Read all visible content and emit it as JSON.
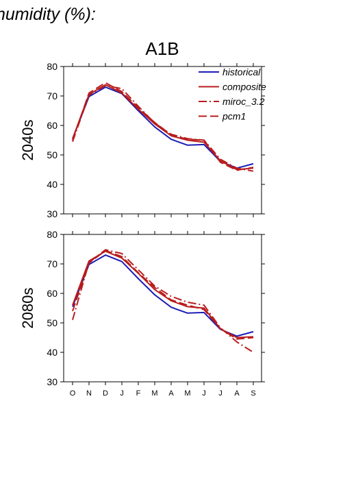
{
  "heading": "humidity (%):",
  "title": "A1B",
  "legend": [
    {
      "label": "historical",
      "color": "#1c1cb4",
      "dash": "solid"
    },
    {
      "label": "composite",
      "color": "#b81c1c",
      "dash": "solid"
    },
    {
      "label": "miroc_3.2",
      "color": "#b81c1c",
      "dash": "dashdot"
    },
    {
      "label": "pcm1",
      "color": "#b81c1c",
      "dash": "dash"
    }
  ],
  "chart_data": [
    {
      "type": "line",
      "row_label": "2040s",
      "categories": [
        "O",
        "N",
        "D",
        "J",
        "F",
        "M",
        "A",
        "M",
        "J",
        "J",
        "A",
        "S"
      ],
      "ylim": [
        30,
        80
      ],
      "yticks": [
        30,
        40,
        50,
        60,
        70,
        80
      ],
      "grid": false,
      "legend_position": "top-right",
      "series": [
        {
          "name": "historical",
          "values": [
            55.5,
            69.8,
            73.0,
            70.8,
            65.0,
            59.5,
            55.3,
            53.3,
            53.5,
            47.8,
            45.5,
            47.0
          ]
        },
        {
          "name": "composite",
          "values": [
            55.5,
            70.5,
            73.8,
            71.0,
            65.5,
            60.5,
            56.5,
            55.0,
            54.3,
            48.0,
            45.0,
            45.5
          ]
        },
        {
          "name": "miroc_3.2",
          "values": [
            54.5,
            70.3,
            73.5,
            72.5,
            66.5,
            60.8,
            57.0,
            55.5,
            55.0,
            48.5,
            45.5,
            44.5
          ]
        },
        {
          "name": "pcm1",
          "values": [
            55.0,
            71.0,
            74.5,
            71.5,
            66.0,
            61.0,
            56.8,
            55.3,
            55.0,
            47.5,
            44.8,
            45.8
          ]
        }
      ]
    },
    {
      "type": "line",
      "row_label": "2080s",
      "categories": [
        "O",
        "N",
        "D",
        "J",
        "F",
        "M",
        "A",
        "M",
        "J",
        "J",
        "A",
        "S"
      ],
      "ylim": [
        30,
        80
      ],
      "yticks": [
        30,
        40,
        50,
        60,
        70,
        80
      ],
      "grid": false,
      "series": [
        {
          "name": "historical",
          "values": [
            55.5,
            69.8,
            73.0,
            70.8,
            65.0,
            59.5,
            55.3,
            53.3,
            53.5,
            47.8,
            45.5,
            47.0
          ]
        },
        {
          "name": "composite",
          "values": [
            56.0,
            71.0,
            74.3,
            72.0,
            66.8,
            61.3,
            57.5,
            55.5,
            55.0,
            48.0,
            45.0,
            45.3
          ]
        },
        {
          "name": "miroc_3.2",
          "values": [
            51.0,
            70.5,
            74.8,
            73.5,
            68.0,
            62.5,
            59.0,
            57.0,
            56.0,
            48.3,
            43.5,
            40.0
          ]
        },
        {
          "name": "pcm1",
          "values": [
            54.0,
            70.3,
            74.5,
            72.5,
            67.0,
            62.0,
            57.8,
            56.0,
            54.5,
            48.0,
            44.5,
            45.0
          ]
        }
      ]
    }
  ]
}
